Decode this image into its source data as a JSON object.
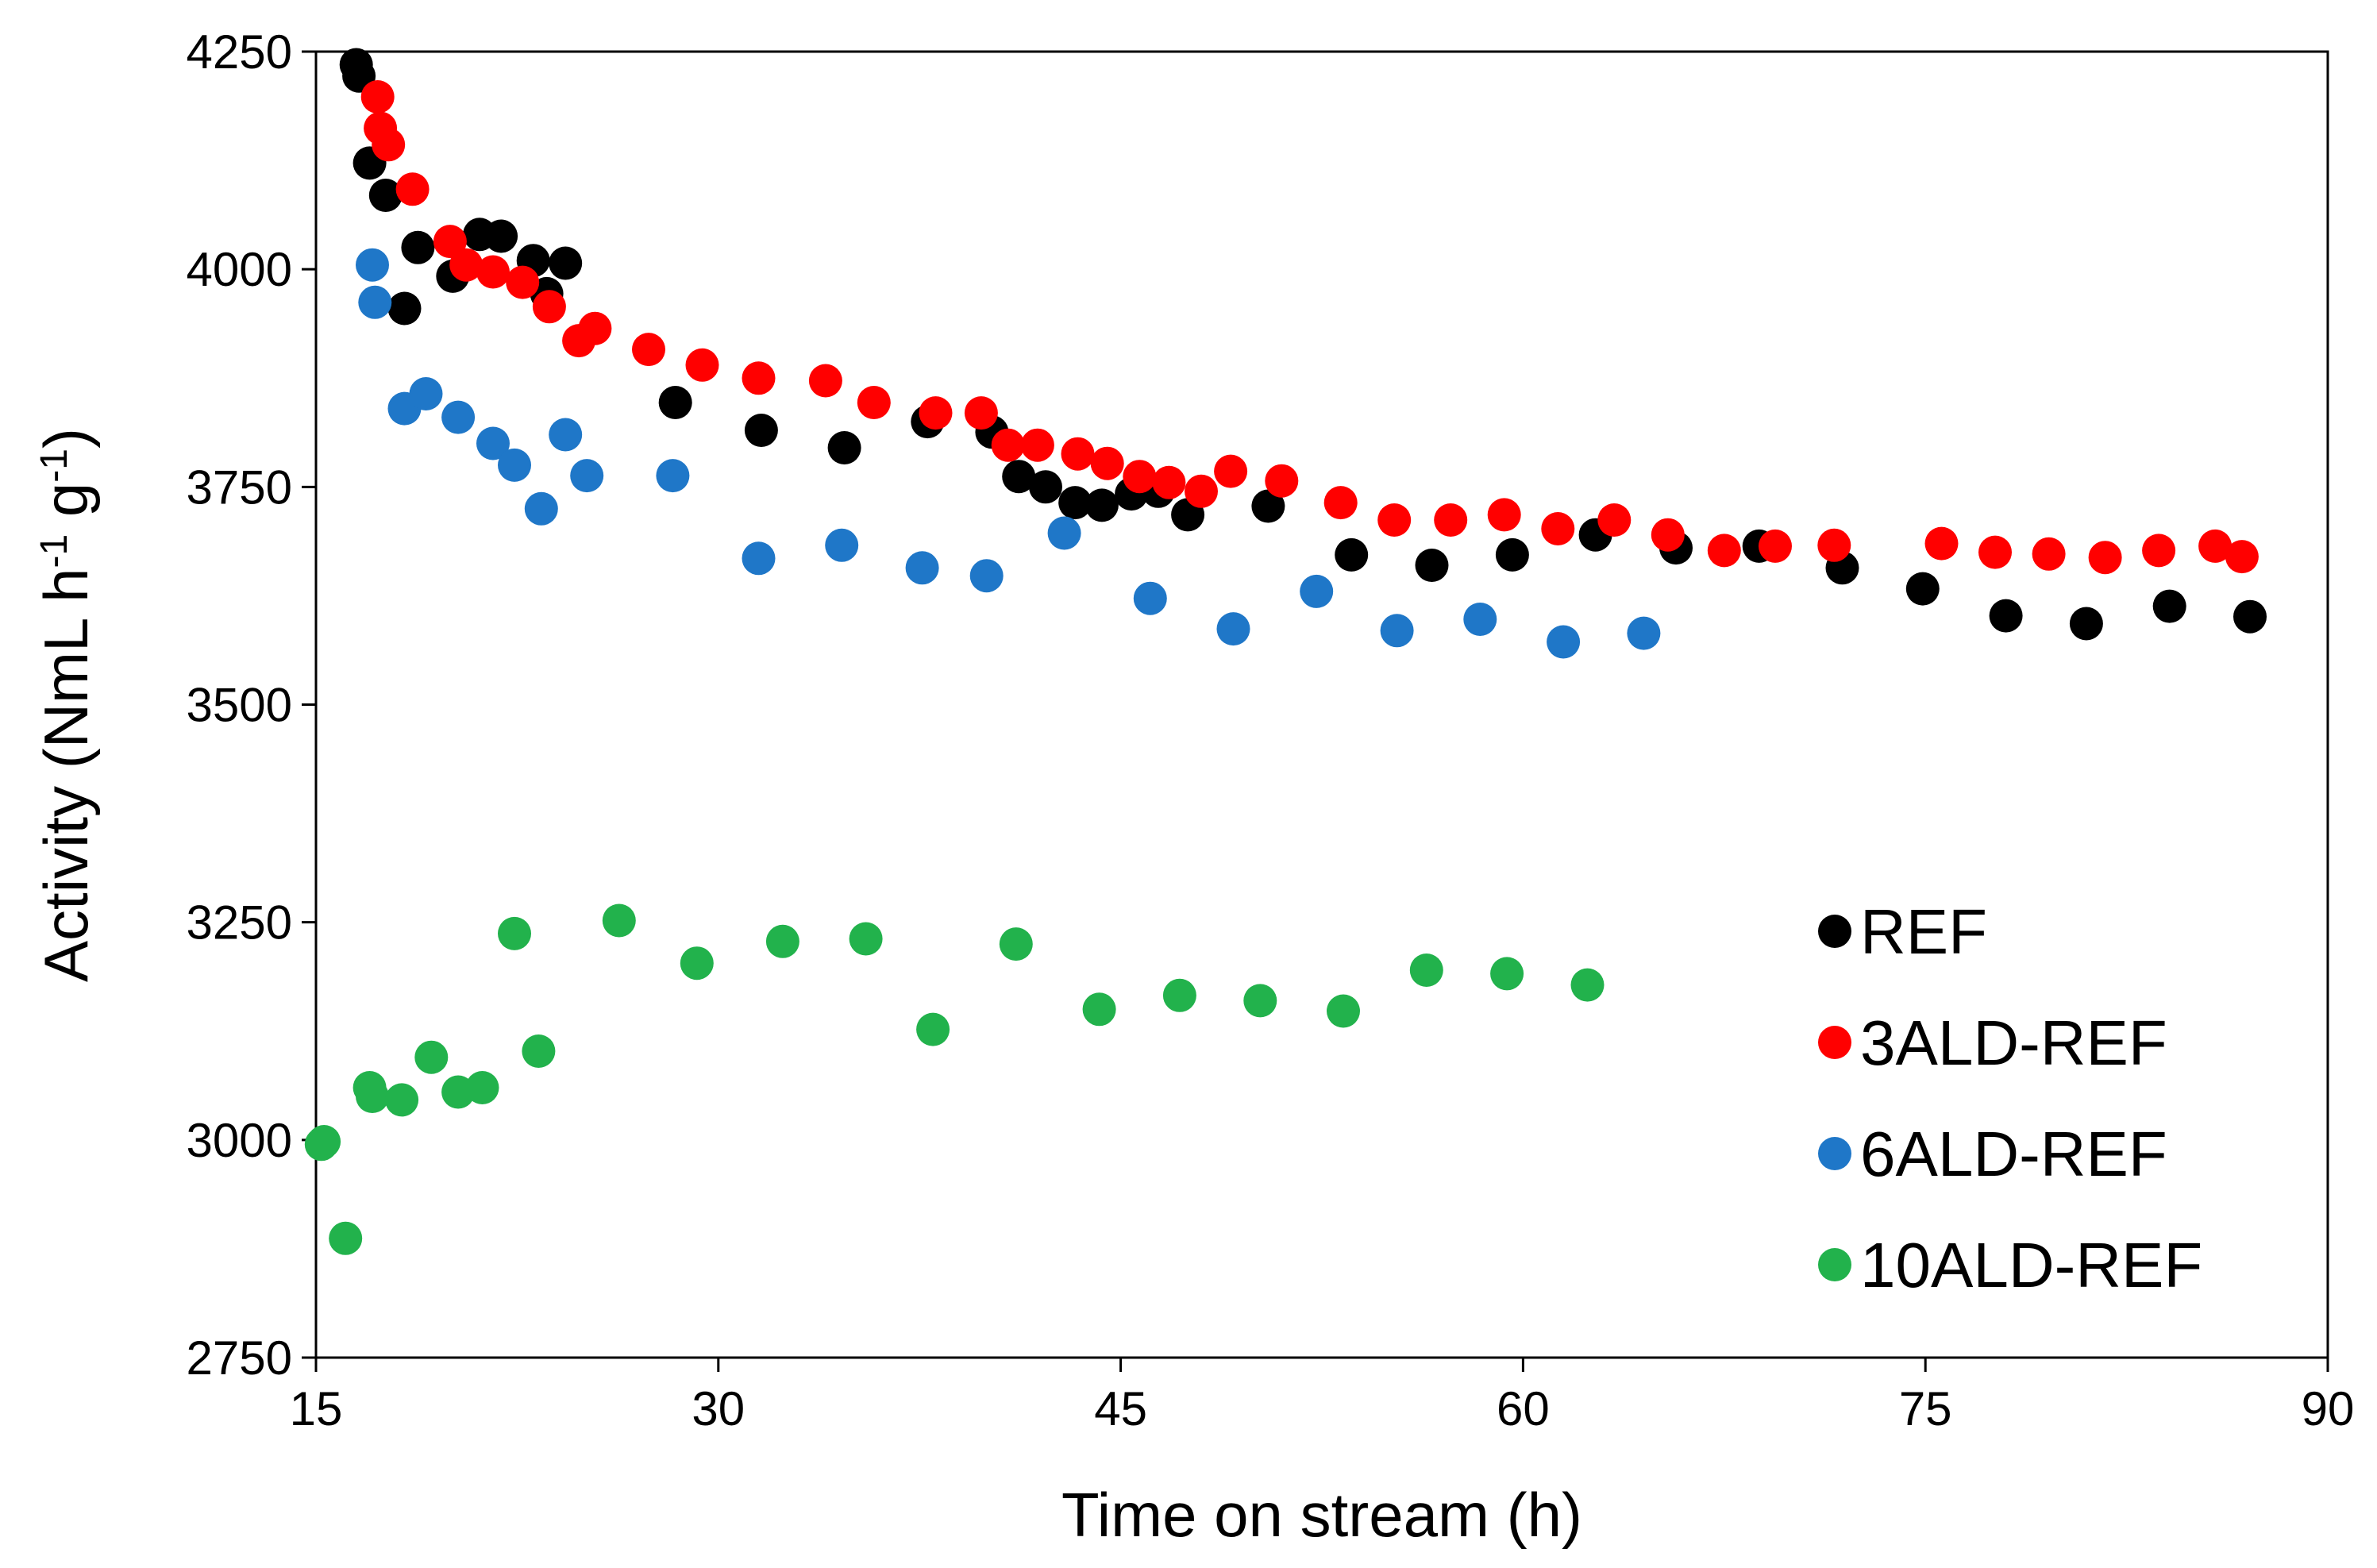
{
  "chart_data": {
    "type": "scatter",
    "title": "",
    "xlabel": "Time on stream (h)",
    "ylabel": {
      "prefix": "Activity (NmL h",
      "sup1": "-1",
      "mid": " g",
      "sup2": "-1",
      "suffix": ")"
    },
    "xlim": [
      15,
      90
    ],
    "ylim": [
      2750,
      4250
    ],
    "xticks": [
      15,
      30,
      45,
      60,
      75,
      90
    ],
    "yticks": [
      2750,
      3000,
      3250,
      3500,
      3750,
      4000,
      4250
    ],
    "grid": false,
    "legend_position": "bottom-right",
    "series": [
      {
        "name": "REF",
        "color": "#000000",
        "points": [
          [
            16.5,
            4235
          ],
          [
            16.6,
            4222
          ],
          [
            17.0,
            4122
          ],
          [
            17.6,
            4085
          ],
          [
            18.3,
            3955
          ],
          [
            18.8,
            4025
          ],
          [
            20.1,
            3992
          ],
          [
            21.1,
            4040
          ],
          [
            21.9,
            4038
          ],
          [
            23.1,
            4010
          ],
          [
            23.6,
            3972
          ],
          [
            24.3,
            4007
          ],
          [
            28.4,
            3847
          ],
          [
            31.6,
            3815
          ],
          [
            34.7,
            3795
          ],
          [
            37.8,
            3825
          ],
          [
            40.2,
            3813
          ],
          [
            41.2,
            3762
          ],
          [
            42.2,
            3750
          ],
          [
            43.3,
            3732
          ],
          [
            44.3,
            3729
          ],
          [
            45.4,
            3742
          ],
          [
            46.4,
            3745
          ],
          [
            47.5,
            3718
          ],
          [
            50.5,
            3728
          ],
          [
            53.6,
            3672
          ],
          [
            56.6,
            3660
          ],
          [
            59.6,
            3672
          ],
          [
            62.7,
            3695
          ],
          [
            65.7,
            3680
          ],
          [
            68.8,
            3682
          ],
          [
            71.9,
            3657
          ],
          [
            74.9,
            3633
          ],
          [
            78.0,
            3602
          ],
          [
            81.0,
            3593
          ],
          [
            84.1,
            3613
          ],
          [
            87.1,
            3601
          ]
        ]
      },
      {
        "name": "3ALD-REF",
        "color": "#ff0000",
        "points": [
          [
            17.3,
            4198
          ],
          [
            17.4,
            4162
          ],
          [
            17.7,
            4143
          ],
          [
            18.6,
            4092
          ],
          [
            20.0,
            4032
          ],
          [
            20.6,
            4005
          ],
          [
            21.6,
            3997
          ],
          [
            22.7,
            3985
          ],
          [
            23.7,
            3957
          ],
          [
            24.8,
            3918
          ],
          [
            25.4,
            3932
          ],
          [
            27.4,
            3908
          ],
          [
            29.4,
            3890
          ],
          [
            31.5,
            3875
          ],
          [
            34.0,
            3872
          ],
          [
            35.8,
            3847
          ],
          [
            38.1,
            3835
          ],
          [
            39.8,
            3835
          ],
          [
            40.8,
            3798
          ],
          [
            41.9,
            3798
          ],
          [
            43.4,
            3788
          ],
          [
            44.5,
            3777
          ],
          [
            45.7,
            3762
          ],
          [
            46.8,
            3755
          ],
          [
            48.0,
            3745
          ],
          [
            49.1,
            3768
          ],
          [
            51.0,
            3757
          ],
          [
            53.2,
            3732
          ],
          [
            55.2,
            3712
          ],
          [
            57.3,
            3712
          ],
          [
            59.3,
            3718
          ],
          [
            61.3,
            3702
          ],
          [
            63.4,
            3712
          ],
          [
            65.4,
            3695
          ],
          [
            67.5,
            3677
          ],
          [
            69.4,
            3682
          ],
          [
            71.6,
            3683
          ],
          [
            75.6,
            3685
          ],
          [
            77.6,
            3675
          ],
          [
            79.6,
            3673
          ],
          [
            81.7,
            3669
          ],
          [
            83.7,
            3677
          ],
          [
            85.8,
            3682
          ],
          [
            86.8,
            3670
          ]
        ]
      },
      {
        "name": "6ALD-REF",
        "color": "#1f77c8",
        "points": [
          [
            17.1,
            4005
          ],
          [
            17.2,
            3962
          ],
          [
            18.3,
            3840
          ],
          [
            19.1,
            3857
          ],
          [
            20.3,
            3830
          ],
          [
            21.6,
            3800
          ],
          [
            22.4,
            3775
          ],
          [
            23.4,
            3725
          ],
          [
            24.3,
            3810
          ],
          [
            25.1,
            3763
          ],
          [
            28.3,
            3763
          ],
          [
            31.5,
            3668
          ],
          [
            34.6,
            3683
          ],
          [
            37.6,
            3657
          ],
          [
            40.0,
            3648
          ],
          [
            42.9,
            3697
          ],
          [
            46.1,
            3622
          ],
          [
            49.2,
            3587
          ],
          [
            52.3,
            3630
          ],
          [
            55.3,
            3585
          ],
          [
            58.4,
            3598
          ],
          [
            61.5,
            3572
          ],
          [
            64.5,
            3582
          ]
        ]
      },
      {
        "name": "10ALD-REF",
        "color": "#22b24c",
        "points": [
          [
            15.2,
            2995
          ],
          [
            15.3,
            2998
          ],
          [
            16.1,
            2887
          ],
          [
            17.0,
            3060
          ],
          [
            17.1,
            3050
          ],
          [
            18.2,
            3046
          ],
          [
            19.3,
            3095
          ],
          [
            20.3,
            3055
          ],
          [
            21.2,
            3060
          ],
          [
            22.4,
            3237
          ],
          [
            23.3,
            3102
          ],
          [
            26.3,
            3252
          ],
          [
            29.2,
            3203
          ],
          [
            32.4,
            3228
          ],
          [
            35.5,
            3231
          ],
          [
            38.0,
            3127
          ],
          [
            41.1,
            3225
          ],
          [
            44.2,
            3150
          ],
          [
            47.2,
            3166
          ],
          [
            50.2,
            3160
          ],
          [
            53.3,
            3148
          ],
          [
            56.4,
            3195
          ],
          [
            59.4,
            3191
          ],
          [
            62.4,
            3178
          ]
        ]
      }
    ]
  }
}
